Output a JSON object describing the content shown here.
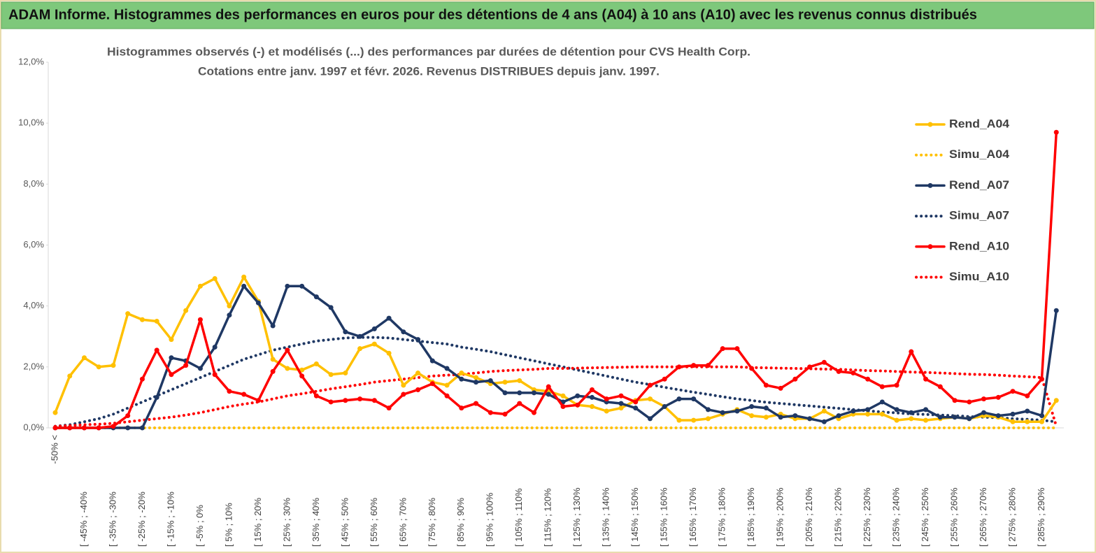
{
  "header": {
    "title": "ADAM Informe. Histogrammes des performances en euros pour des détentions de 4 ans (A04) à 10 ans (A10) avec les revenus connus distribués"
  },
  "chart_data": {
    "type": "line",
    "title": "Histogrammes observés (-) et modélisés (...) des performances par durées de détention pour CVS Health Corp.",
    "subtitle": "Cotations entre janv. 1997 et févr. 2026. Revenus DISTRIBUES depuis janv. 1997.",
    "categories": [
      "-50% <",
      null,
      "[ -45% ; -40%",
      null,
      "[ -35% ; -30%",
      null,
      "[ -25% ; -20%",
      null,
      "[ -15% ; -10%",
      null,
      "[ -5% ; 0%",
      null,
      "[ 5% ; 10%",
      null,
      "[ 15% ; 20%",
      null,
      "[ 25% ; 30%",
      null,
      "[ 35% ; 40%",
      null,
      "[ 45% ; 50%",
      null,
      "[ 55% ; 60%",
      null,
      "[ 65% ; 70%",
      null,
      "[ 75% ; 80%",
      null,
      "[ 85% ; 90%",
      null,
      "[ 95% ; 100%",
      null,
      "[ 105% ; 110%",
      null,
      "[ 115% ; 120%",
      null,
      "[ 125% ; 130%",
      null,
      "[ 135% ; 140%",
      null,
      "[ 145% ; 150%",
      null,
      "[ 155% ; 160%",
      null,
      "[ 165% ; 170%",
      null,
      "[ 175% ; 180%",
      null,
      "[ 185% ; 190%",
      null,
      "[ 195% ; 200%",
      null,
      "[ 205% ; 210%",
      null,
      "[ 215% ; 220%",
      null,
      "[ 225% ; 230%",
      null,
      "[ 235% ; 240%",
      null,
      "[ 245% ; 250%",
      null,
      "[ 255% ; 260%",
      null,
      "[ 265% ; 270%",
      null,
      "[ 275% ; 280%",
      null,
      "[ 285% ; 290%",
      null
    ],
    "series": [
      {
        "name": "Rend_A04",
        "color": "#FFC000",
        "line_style": "solid",
        "markers": true,
        "values": [
          0.5,
          1.7,
          2.3,
          2.0,
          2.05,
          3.75,
          3.55,
          3.5,
          2.9,
          3.85,
          4.65,
          4.9,
          4.0,
          4.95,
          4.15,
          2.25,
          1.95,
          1.9,
          2.1,
          1.75,
          1.8,
          2.6,
          2.75,
          2.45,
          1.4,
          1.8,
          1.5,
          1.4,
          1.8,
          1.65,
          1.45,
          1.5,
          1.55,
          1.25,
          1.2,
          1.05,
          0.75,
          0.7,
          0.55,
          0.65,
          0.9,
          0.95,
          0.7,
          0.25,
          0.25,
          0.3,
          0.45,
          0.6,
          0.4,
          0.35,
          0.45,
          0.3,
          0.3,
          0.55,
          0.3,
          0.45,
          0.45,
          0.45,
          0.25,
          0.3,
          0.25,
          0.3,
          0.35,
          0.3,
          0.4,
          0.35,
          0.2,
          0.2,
          0.2,
          0.9
        ]
      },
      {
        "name": "Simu_A04",
        "color": "#FFC000",
        "line_style": "dotted",
        "markers": false,
        "values": [
          0,
          0,
          0,
          0,
          0,
          0,
          0,
          0,
          0,
          0,
          0,
          0,
          0,
          0,
          0,
          0,
          0,
          0,
          0,
          0,
          0,
          0,
          0,
          0,
          0,
          0,
          0,
          0,
          0,
          0,
          0,
          0,
          0,
          0,
          0,
          0,
          0,
          0,
          0,
          0,
          0,
          0,
          0,
          0,
          0,
          0,
          0,
          0,
          0,
          0,
          0,
          0,
          0,
          0,
          0,
          0,
          0,
          0,
          0,
          0,
          0,
          0,
          0,
          0,
          0,
          0,
          0,
          0,
          0,
          0
        ]
      },
      {
        "name": "Rend_A07",
        "color": "#1F3864",
        "line_style": "solid",
        "markers": true,
        "values": [
          0,
          0,
          0,
          0,
          0,
          0,
          0,
          1.0,
          2.3,
          2.2,
          1.95,
          2.65,
          3.7,
          4.65,
          4.1,
          3.35,
          4.65,
          4.65,
          4.3,
          3.95,
          3.15,
          3.0,
          3.25,
          3.6,
          3.15,
          2.9,
          2.2,
          1.95,
          1.6,
          1.5,
          1.55,
          1.15,
          1.15,
          1.15,
          1.1,
          0.85,
          1.05,
          1.0,
          0.85,
          0.8,
          0.65,
          0.3,
          0.7,
          0.95,
          0.95,
          0.6,
          0.5,
          0.55,
          0.7,
          0.65,
          0.35,
          0.4,
          0.3,
          0.2,
          0.4,
          0.55,
          0.6,
          0.85,
          0.6,
          0.5,
          0.6,
          0.35,
          0.35,
          0.3,
          0.5,
          0.4,
          0.45,
          0.55,
          0.4,
          3.85
        ]
      },
      {
        "name": "Simu_A07",
        "color": "#1F3864",
        "line_style": "dotted",
        "markers": false,
        "values": [
          0.05,
          0.1,
          0.2,
          0.3,
          0.45,
          0.65,
          0.85,
          1.05,
          1.25,
          1.45,
          1.65,
          1.85,
          2.05,
          2.25,
          2.4,
          2.55,
          2.65,
          2.75,
          2.85,
          2.9,
          2.95,
          2.97,
          2.97,
          2.95,
          2.9,
          2.85,
          2.8,
          2.75,
          2.65,
          2.58,
          2.5,
          2.4,
          2.3,
          2.2,
          2.1,
          2.0,
          1.9,
          1.8,
          1.7,
          1.6,
          1.5,
          1.42,
          1.33,
          1.25,
          1.17,
          1.1,
          1.02,
          0.95,
          0.9,
          0.84,
          0.8,
          0.76,
          0.72,
          0.68,
          0.64,
          0.6,
          0.56,
          0.52,
          0.49,
          0.46,
          0.44,
          0.42,
          0.4,
          0.37,
          0.35,
          0.33,
          0.3,
          0.28,
          0.25,
          0.2
        ]
      },
      {
        "name": "Rend_A10",
        "color": "#FF0000",
        "line_style": "solid",
        "markers": true,
        "values": [
          0,
          0,
          0,
          0,
          0.05,
          0.4,
          1.6,
          2.55,
          1.75,
          2.05,
          3.55,
          1.75,
          1.2,
          1.1,
          0.9,
          1.85,
          2.55,
          1.7,
          1.05,
          0.85,
          0.9,
          0.95,
          0.9,
          0.65,
          1.1,
          1.25,
          1.45,
          1.05,
          0.65,
          0.8,
          0.5,
          0.45,
          0.8,
          0.5,
          1.35,
          0.7,
          0.75,
          1.25,
          0.95,
          1.05,
          0.85,
          1.4,
          1.6,
          2.0,
          2.05,
          2.05,
          2.6,
          2.6,
          1.95,
          1.4,
          1.3,
          1.6,
          2.0,
          2.15,
          1.85,
          1.8,
          1.6,
          1.35,
          1.4,
          2.5,
          1.6,
          1.35,
          0.9,
          0.85,
          0.95,
          1.0,
          1.2,
          1.05,
          1.6,
          9.7
        ]
      },
      {
        "name": "Simu_A10",
        "color": "#FF0000",
        "line_style": "dotted",
        "markers": false,
        "values": [
          0.05,
          0.07,
          0.1,
          0.12,
          0.15,
          0.2,
          0.25,
          0.3,
          0.35,
          0.42,
          0.5,
          0.6,
          0.7,
          0.78,
          0.85,
          0.95,
          1.05,
          1.12,
          1.2,
          1.28,
          1.35,
          1.42,
          1.5,
          1.55,
          1.6,
          1.65,
          1.7,
          1.73,
          1.75,
          1.8,
          1.85,
          1.88,
          1.9,
          1.92,
          1.95,
          1.95,
          1.96,
          1.97,
          1.98,
          1.99,
          2.0,
          2.0,
          2.0,
          2.0,
          2.0,
          2.0,
          2.0,
          2.0,
          1.98,
          1.97,
          1.96,
          1.95,
          1.94,
          1.93,
          1.92,
          1.9,
          1.88,
          1.87,
          1.85,
          1.83,
          1.82,
          1.8,
          1.78,
          1.76,
          1.75,
          1.73,
          1.7,
          1.68,
          1.65,
          0.05
        ]
      }
    ],
    "ylim": [
      0,
      12
    ],
    "yticks": [
      {
        "value": 0,
        "label": "0,0%"
      },
      {
        "value": 2,
        "label": "2,0%"
      },
      {
        "value": 4,
        "label": "4,0%"
      },
      {
        "value": 6,
        "label": "6,0%"
      },
      {
        "value": 8,
        "label": "8,0%"
      },
      {
        "value": 10,
        "label": "10,0%"
      },
      {
        "value": 12,
        "label": "12,0%"
      }
    ],
    "grid": false,
    "legend": "right"
  }
}
